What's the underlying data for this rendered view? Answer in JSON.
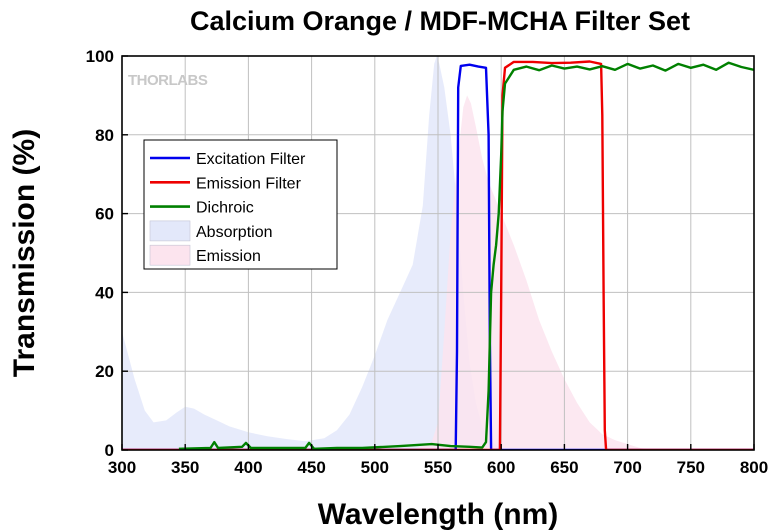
{
  "chart_data": {
    "type": "line",
    "title": "Calcium Orange / MDF-MCHA Filter Set",
    "xlabel": "Wavelength (nm)",
    "ylabel": "Transmission (%)",
    "xlim": [
      300,
      800
    ],
    "ylim": [
      0,
      100
    ],
    "xticks": [
      300,
      350,
      400,
      450,
      500,
      550,
      600,
      650,
      700,
      750,
      800
    ],
    "yticks": [
      0,
      20,
      40,
      60,
      80,
      100
    ],
    "grid": true,
    "legend_position": "upper-left",
    "logo_text": "THORLABS",
    "series": [
      {
        "name": "Excitation Filter",
        "kind": "line",
        "color": "#0000ee",
        "points": [
          [
            300,
            0
          ],
          [
            564,
            0
          ],
          [
            565,
            25
          ],
          [
            566,
            92
          ],
          [
            568,
            97.5
          ],
          [
            575,
            97.8
          ],
          [
            582,
            97.3
          ],
          [
            588,
            97
          ],
          [
            590,
            80
          ],
          [
            591,
            30
          ],
          [
            592,
            0
          ],
          [
            800,
            0
          ]
        ]
      },
      {
        "name": "Emission Filter",
        "kind": "line",
        "color": "#ee0000",
        "points": [
          [
            300,
            0
          ],
          [
            599,
            0
          ],
          [
            600,
            40
          ],
          [
            601,
            90
          ],
          [
            603,
            97
          ],
          [
            610,
            98.5
          ],
          [
            625,
            98.5
          ],
          [
            640,
            98.2
          ],
          [
            655,
            98.3
          ],
          [
            670,
            98.6
          ],
          [
            679,
            98
          ],
          [
            680,
            85
          ],
          [
            681,
            40
          ],
          [
            682,
            5
          ],
          [
            683,
            0
          ],
          [
            800,
            0
          ]
        ]
      },
      {
        "name": "Dichroic",
        "kind": "line",
        "color": "#008000",
        "points": [
          [
            345,
            0.3
          ],
          [
            370,
            0.5
          ],
          [
            373,
            2
          ],
          [
            376,
            0.5
          ],
          [
            395,
            0.8
          ],
          [
            398,
            1.8
          ],
          [
            402,
            0.5
          ],
          [
            430,
            0.5
          ],
          [
            445,
            0.5
          ],
          [
            448,
            1.8
          ],
          [
            452,
            0.3
          ],
          [
            470,
            0.5
          ],
          [
            490,
            0.5
          ],
          [
            520,
            1.0
          ],
          [
            545,
            1.5
          ],
          [
            560,
            1.0
          ],
          [
            575,
            0.8
          ],
          [
            585,
            0.6
          ],
          [
            588,
            2
          ],
          [
            590,
            15
          ],
          [
            592,
            40
          ],
          [
            594,
            47
          ],
          [
            596,
            52
          ],
          [
            598,
            60
          ],
          [
            600,
            75
          ],
          [
            601,
            86
          ],
          [
            603,
            93
          ],
          [
            610,
            96.5
          ],
          [
            620,
            97.3
          ],
          [
            630,
            96.4
          ],
          [
            640,
            97.6
          ],
          [
            650,
            96.8
          ],
          [
            660,
            97.3
          ],
          [
            670,
            96.6
          ],
          [
            680,
            97.4
          ],
          [
            690,
            96.5
          ],
          [
            700,
            98
          ],
          [
            710,
            96.8
          ],
          [
            720,
            97.6
          ],
          [
            730,
            96.3
          ],
          [
            740,
            98
          ],
          [
            750,
            97
          ],
          [
            760,
            97.8
          ],
          [
            770,
            96.5
          ],
          [
            780,
            98.3
          ],
          [
            790,
            97.2
          ],
          [
            800,
            96.5
          ]
        ]
      },
      {
        "name": "Absorption",
        "kind": "area",
        "color": "#e3e8fa",
        "points": [
          [
            300,
            30
          ],
          [
            305,
            24
          ],
          [
            310,
            18
          ],
          [
            318,
            10
          ],
          [
            325,
            7
          ],
          [
            335,
            7.5
          ],
          [
            343,
            9.5
          ],
          [
            350,
            11
          ],
          [
            357,
            10.5
          ],
          [
            365,
            9
          ],
          [
            375,
            7.5
          ],
          [
            385,
            6
          ],
          [
            400,
            4.5
          ],
          [
            415,
            3.5
          ],
          [
            430,
            2.8
          ],
          [
            445,
            2.2
          ],
          [
            460,
            3
          ],
          [
            470,
            5
          ],
          [
            480,
            9
          ],
          [
            490,
            16
          ],
          [
            500,
            24
          ],
          [
            510,
            33
          ],
          [
            520,
            40
          ],
          [
            530,
            47
          ],
          [
            538,
            62
          ],
          [
            543,
            85
          ],
          [
            547,
            98
          ],
          [
            549,
            100
          ],
          [
            551,
            98
          ],
          [
            555,
            92
          ],
          [
            560,
            80
          ],
          [
            565,
            62
          ],
          [
            570,
            40
          ],
          [
            575,
            22
          ],
          [
            580,
            12
          ],
          [
            585,
            6
          ],
          [
            590,
            3
          ],
          [
            595,
            1.5
          ],
          [
            600,
            0.5
          ],
          [
            605,
            0
          ]
        ]
      },
      {
        "name": "Emission",
        "kind": "area",
        "color": "#fce4ee",
        "points": [
          [
            530,
            0
          ],
          [
            545,
            2
          ],
          [
            550,
            7
          ],
          [
            555,
            30
          ],
          [
            560,
            55
          ],
          [
            565,
            72
          ],
          [
            570,
            87
          ],
          [
            573,
            90
          ],
          [
            576,
            88
          ],
          [
            580,
            82
          ],
          [
            585,
            74
          ],
          [
            590,
            68
          ],
          [
            595,
            64
          ],
          [
            600,
            60
          ],
          [
            610,
            52
          ],
          [
            620,
            43
          ],
          [
            630,
            33
          ],
          [
            640,
            25
          ],
          [
            650,
            18
          ],
          [
            660,
            12
          ],
          [
            670,
            7
          ],
          [
            680,
            4
          ],
          [
            690,
            2.5
          ],
          [
            700,
            1.5
          ],
          [
            710,
            0.5
          ],
          [
            720,
            0
          ]
        ]
      }
    ]
  }
}
